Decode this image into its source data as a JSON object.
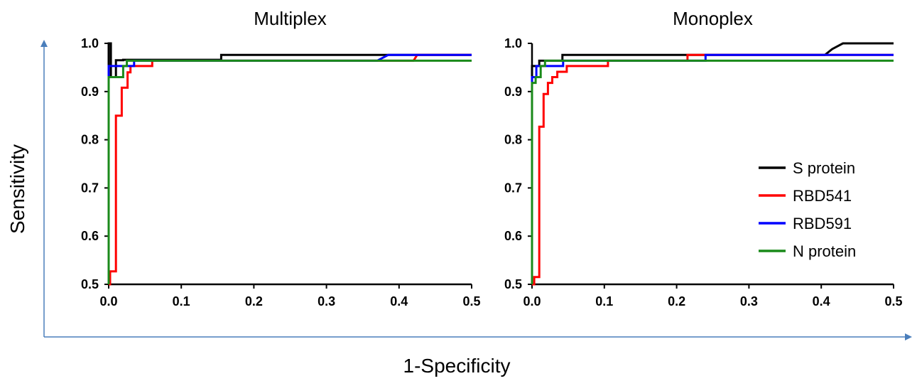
{
  "figure": {
    "ylabel": "Sensitivity",
    "xlabel": "1-Specificity"
  },
  "legend": {
    "position": "right of the Monoplex panel, mid-height",
    "entries": [
      {
        "name": "S protein",
        "color": "#000000"
      },
      {
        "name": "RBD541",
        "color": "#ff0000"
      },
      {
        "name": "RBD591",
        "color": "#0000ff"
      },
      {
        "name": "N protein",
        "color": "#1a8a1a"
      }
    ]
  },
  "chart_data": [
    {
      "type": "line",
      "title": "Multiplex",
      "xlim": [
        0,
        0.5
      ],
      "ylim": [
        0.5,
        1.0
      ],
      "xticks": [
        "0.0",
        "0.1",
        "0.2",
        "0.3",
        "0.4",
        "0.5"
      ],
      "yticks": [
        "0.5",
        "0.6",
        "0.7",
        "0.8",
        "0.9",
        "1.0"
      ],
      "series": [
        {
          "name": "S protein",
          "color": "#000000",
          "x": [
            0,
            0,
            0.003,
            0.003,
            0.01,
            0.01,
            0.02,
            0.02,
            0.155,
            0.155,
            0.5
          ],
          "y": [
            0.5,
            1.0,
            1.0,
            0.93,
            0.93,
            0.965,
            0.965,
            0.966,
            0.966,
            0.976,
            0.976
          ]
        },
        {
          "name": "RBD541",
          "color": "#ff0000",
          "x": [
            0,
            0.002,
            0.002,
            0.01,
            0.01,
            0.018,
            0.018,
            0.026,
            0.026,
            0.03,
            0.03,
            0.06,
            0.06,
            0.42,
            0.425,
            0.5
          ],
          "y": [
            0.5,
            0.5,
            0.527,
            0.527,
            0.85,
            0.85,
            0.908,
            0.908,
            0.94,
            0.94,
            0.953,
            0.953,
            0.964,
            0.964,
            0.976,
            0.976
          ]
        },
        {
          "name": "RBD591",
          "color": "#0000ff",
          "x": [
            0,
            0,
            0.035,
            0.035,
            0.37,
            0.385,
            0.5
          ],
          "y": [
            0.5,
            0.953,
            0.953,
            0.964,
            0.964,
            0.976,
            0.976
          ]
        },
        {
          "name": "N protein",
          "color": "#1a8a1a",
          "x": [
            0,
            0,
            0.02,
            0.02,
            0.025,
            0.025,
            0.5
          ],
          "y": [
            0.5,
            0.93,
            0.93,
            0.953,
            0.953,
            0.964,
            0.964
          ]
        }
      ]
    },
    {
      "type": "line",
      "title": "Monoplex",
      "xlim": [
        0,
        0.5
      ],
      "ylim": [
        0.5,
        1.0
      ],
      "xticks": [
        "0.0",
        "0.1",
        "0.2",
        "0.3",
        "0.4",
        "0.5"
      ],
      "yticks": [
        "0.5",
        "0.6",
        "0.7",
        "0.8",
        "0.9",
        "1.0"
      ],
      "series": [
        {
          "name": "S protein",
          "color": "#000000",
          "x": [
            0,
            0,
            0.01,
            0.01,
            0.042,
            0.042,
            0.405,
            0.415,
            0.43,
            0.5
          ],
          "y": [
            0.5,
            0.953,
            0.953,
            0.964,
            0.964,
            0.976,
            0.976,
            0.988,
            1.0,
            1.0
          ]
        },
        {
          "name": "RBD541",
          "color": "#ff0000",
          "x": [
            0,
            0.003,
            0.003,
            0.01,
            0.01,
            0.016,
            0.016,
            0.022,
            0.022,
            0.028,
            0.028,
            0.035,
            0.035,
            0.048,
            0.048,
            0.105,
            0.105,
            0.215,
            0.215,
            0.5
          ],
          "y": [
            0.5,
            0.5,
            0.515,
            0.515,
            0.827,
            0.827,
            0.895,
            0.895,
            0.918,
            0.918,
            0.93,
            0.93,
            0.941,
            0.941,
            0.953,
            0.953,
            0.964,
            0.964,
            0.976,
            0.976
          ]
        },
        {
          "name": "RBD591",
          "color": "#0000ff",
          "x": [
            0,
            0,
            0.006,
            0.006,
            0.043,
            0.043,
            0.24,
            0.24,
            0.5
          ],
          "y": [
            0.5,
            0.93,
            0.93,
            0.953,
            0.953,
            0.964,
            0.964,
            0.976,
            0.976
          ]
        },
        {
          "name": "N protein",
          "color": "#1a8a1a",
          "x": [
            0,
            0,
            0.005,
            0.005,
            0.012,
            0.012,
            0.018,
            0.018,
            0.5
          ],
          "y": [
            0.5,
            0.918,
            0.918,
            0.93,
            0.93,
            0.953,
            0.953,
            0.964,
            0.964
          ]
        }
      ]
    }
  ]
}
